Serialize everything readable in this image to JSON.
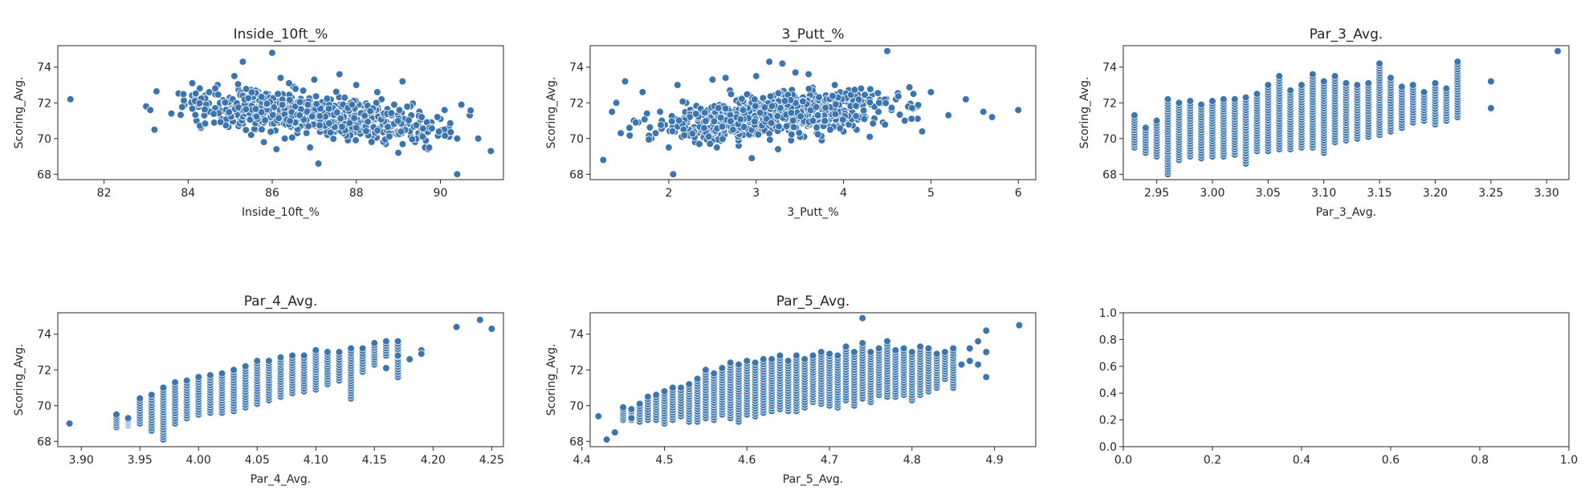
{
  "marker_color": "#3b75af",
  "marker_edge_color": "#ffffff",
  "chart_data": [
    {
      "type": "scatter",
      "title": "Inside_10ft_%",
      "xlabel": "Inside_10ft_%",
      "ylabel": "Scoring_Avg.",
      "xlim": [
        80.9,
        91.5
      ],
      "ylim": [
        67.7,
        75.2
      ],
      "xticks": [
        "82",
        "84",
        "86",
        "88",
        "90"
      ],
      "xtick_values": [
        82,
        84,
        86,
        88,
        90
      ],
      "yticks": [
        "68",
        "70",
        "72",
        "74"
      ],
      "ytick_values": [
        68,
        70,
        72,
        74
      ],
      "x": [
        81.2,
        83.0,
        83.2,
        83.1,
        83.6,
        83.9,
        84.1,
        84.2,
        84.4,
        84.7,
        84.9,
        85.1,
        85.2,
        85.3,
        85.5,
        85.7,
        85.9,
        86.0,
        86.2,
        86.3,
        86.5,
        86.7,
        86.9,
        87.0,
        87.2,
        87.4,
        87.6,
        87.8,
        88.0,
        88.1,
        88.3,
        88.5,
        88.7,
        88.9,
        89.1,
        89.3,
        89.5,
        89.7,
        90.0,
        90.2,
        90.4,
        90.7,
        90.9,
        91.2,
        84.5,
        85.8,
        86.4,
        87.1,
        87.3,
        87.9,
        88.6,
        89.0,
        85.0,
        86.1,
        86.8,
        87.5,
        88.2,
        88.8,
        89.4,
        90.1,
        84.3,
        85.4,
        86.6,
        87.7,
        88.4,
        89.8,
        90.5,
        85.6,
        86.0,
        87.0,
        90.4,
        84.1,
        85.2,
        86.2
      ],
      "y": [
        72.2,
        71.8,
        70.5,
        71.6,
        71.4,
        72.0,
        73.1,
        71.0,
        72.4,
        73.0,
        71.5,
        73.5,
        72.8,
        74.3,
        70.2,
        71.8,
        72.5,
        74.8,
        73.4,
        70.0,
        72.9,
        71.2,
        69.5,
        73.3,
        70.7,
        72.2,
        73.6,
        69.9,
        73.0,
        71.4,
        70.3,
        72.6,
        69.7,
        71.9,
        73.2,
        70.1,
        71.5,
        69.4,
        71.1,
        70.6,
        68.0,
        71.3,
        70.0,
        69.3,
        72.6,
        69.8,
        73.1,
        68.6,
        71.8,
        70.9,
        72.2,
        69.2,
        71.7,
        69.4,
        71.0,
        70.4,
        71.3,
        70.8,
        69.8,
        71.6,
        70.6,
        71.2,
        70.3,
        71.4,
        70.2,
        70.9,
        71.9,
        70.5,
        72.0,
        70.8,
        70.0,
        71.9,
        70.7,
        71.4
      ]
    },
    {
      "type": "scatter",
      "title": "3_Putt_%",
      "xlabel": "3_Putt_%",
      "ylabel": "Scoring_Avg.",
      "xlim": [
        1.1,
        6.2
      ],
      "ylim": [
        67.7,
        75.2
      ],
      "xticks": [
        "2",
        "3",
        "4",
        "5",
        "6"
      ],
      "xtick_values": [
        2,
        3,
        4,
        5,
        6
      ],
      "yticks": [
        "68",
        "70",
        "72",
        "74"
      ],
      "ytick_values": [
        68,
        70,
        72,
        74
      ],
      "x": [
        1.25,
        1.35,
        1.4,
        1.45,
        1.5,
        1.6,
        1.7,
        1.8,
        1.9,
        2.0,
        2.05,
        2.1,
        2.2,
        2.3,
        2.4,
        2.5,
        2.6,
        2.7,
        2.8,
        2.9,
        3.0,
        3.1,
        3.2,
        3.3,
        3.4,
        3.5,
        3.6,
        3.7,
        3.8,
        3.9,
        4.0,
        4.1,
        4.2,
        4.3,
        4.4,
        4.5,
        4.6,
        4.7,
        4.8,
        4.9,
        5.0,
        5.2,
        5.4,
        5.6,
        5.7,
        6.0,
        3.45,
        3.15,
        2.65,
        1.55,
        1.65,
        2.15,
        2.45,
        2.75,
        3.05,
        3.35,
        3.65,
        3.95,
        4.25,
        4.55,
        4.85,
        1.85,
        2.35,
        2.85,
        3.25,
        3.75,
        4.15,
        4.45,
        2.55,
        3.55,
        1.75,
        2.95
      ],
      "y": [
        68.8,
        71.5,
        72.0,
        70.3,
        73.2,
        71.0,
        72.6,
        70.0,
        71.5,
        69.5,
        68.0,
        73.0,
        72.0,
        69.8,
        71.3,
        73.3,
        70.2,
        72.7,
        69.6,
        71.8,
        73.5,
        70.5,
        72.4,
        74.2,
        69.9,
        71.6,
        73.6,
        70.8,
        72.2,
        73.0,
        70.4,
        71.9,
        72.8,
        70.1,
        71.5,
        74.9,
        72.2,
        71.0,
        72.5,
        70.4,
        72.6,
        71.3,
        72.2,
        71.5,
        71.2,
        71.6,
        73.7,
        74.3,
        73.4,
        70.6,
        70.9,
        71.0,
        70.4,
        71.1,
        70.7,
        71.0,
        71.4,
        71.3,
        71.2,
        71.6,
        71.8,
        70.3,
        69.7,
        70.2,
        69.4,
        69.9,
        70.5,
        70.9,
        69.5,
        70.1,
        71.4,
        68.9
      ]
    },
    {
      "type": "scatter",
      "title": "Par_3_Avg.",
      "xlabel": "Par_3_Avg.",
      "ylabel": "Scoring_Avg.",
      "xlim": [
        2.92,
        3.32
      ],
      "ylim": [
        67.7,
        75.2
      ],
      "xticks": [
        "2.95",
        "3.00",
        "3.05",
        "3.10",
        "3.15",
        "3.20",
        "3.25",
        "3.30"
      ],
      "xtick_values": [
        2.95,
        3.0,
        3.05,
        3.1,
        3.15,
        3.2,
        3.25,
        3.3
      ],
      "yticks": [
        "68",
        "70",
        "72",
        "74"
      ],
      "ytick_values": [
        68,
        70,
        72,
        74
      ],
      "strip_x": [
        2.93,
        2.94,
        2.95,
        2.96,
        2.97,
        2.98,
        2.99,
        3.0,
        3.01,
        3.02,
        3.03,
        3.04,
        3.05,
        3.06,
        3.07,
        3.08,
        3.09,
        3.1,
        3.11,
        3.12,
        3.13,
        3.14,
        3.15,
        3.16,
        3.17,
        3.18,
        3.19,
        3.2,
        3.21,
        3.22
      ],
      "strip_ymin": [
        69.5,
        69.2,
        69.0,
        68.0,
        68.8,
        69.0,
        68.9,
        69.0,
        69.0,
        69.1,
        68.6,
        69.3,
        69.3,
        69.4,
        69.4,
        69.5,
        69.5,
        69.2,
        69.8,
        69.9,
        70.0,
        70.1,
        70.2,
        70.4,
        70.6,
        70.9,
        71.0,
        70.8,
        71.0,
        71.2
      ],
      "strip_ymax": [
        71.3,
        70.6,
        71.0,
        72.2,
        72.0,
        72.1,
        71.9,
        72.1,
        72.2,
        72.2,
        72.3,
        72.5,
        73.0,
        73.5,
        72.7,
        73.0,
        73.6,
        73.2,
        73.5,
        73.1,
        73.0,
        73.1,
        74.2,
        73.4,
        72.9,
        73.0,
        72.6,
        73.1,
        72.8,
        74.3
      ],
      "extra_x": [
        3.25,
        3.25,
        3.31
      ],
      "extra_y": [
        73.2,
        71.7,
        74.9
      ]
    },
    {
      "type": "scatter",
      "title": "Par_4_Avg.",
      "xlabel": "Par_4_Avg.",
      "ylabel": "Scoring_Avg.",
      "xlim": [
        3.88,
        4.26
      ],
      "ylim": [
        67.7,
        75.2
      ],
      "xticks": [
        "3.90",
        "3.95",
        "4.00",
        "4.05",
        "4.10",
        "4.15",
        "4.20",
        "4.25"
      ],
      "xtick_values": [
        3.9,
        3.95,
        4.0,
        4.05,
        4.1,
        4.15,
        4.2,
        4.25
      ],
      "yticks": [
        "68",
        "70",
        "72",
        "74"
      ],
      "ytick_values": [
        68,
        70,
        72,
        74
      ],
      "strip_x": [
        3.93,
        3.94,
        3.95,
        3.96,
        3.97,
        3.98,
        3.99,
        4.0,
        4.01,
        4.02,
        4.03,
        4.04,
        4.05,
        4.06,
        4.07,
        4.08,
        4.09,
        4.1,
        4.11,
        4.12,
        4.13,
        4.14,
        4.15,
        4.16,
        4.17
      ],
      "strip_ymin": [
        68.8,
        68.9,
        69.0,
        68.6,
        68.1,
        69.0,
        69.3,
        69.5,
        69.6,
        69.6,
        69.7,
        69.9,
        70.1,
        70.3,
        70.5,
        70.7,
        70.8,
        70.9,
        71.2,
        71.4,
        70.4,
        71.9,
        72.3,
        72.8,
        71.6
      ],
      "strip_ymax": [
        69.5,
        69.3,
        70.4,
        70.6,
        71.0,
        71.3,
        71.4,
        71.6,
        71.7,
        71.8,
        72.0,
        72.2,
        72.5,
        72.5,
        72.7,
        72.8,
        72.8,
        73.1,
        73.0,
        73.0,
        73.2,
        73.2,
        73.5,
        73.6,
        73.6
      ],
      "extra_x": [
        3.89,
        4.18,
        4.19,
        4.19,
        4.22,
        4.24,
        4.25,
        4.16,
        4.17
      ],
      "extra_y": [
        69.0,
        72.6,
        73.1,
        72.9,
        74.4,
        74.8,
        74.3,
        72.1,
        72.8
      ]
    },
    {
      "type": "scatter",
      "title": "Par_5_Avg.",
      "xlabel": "Par_5_Avg.",
      "ylabel": "Scoring_Avg.",
      "xlim": [
        4.41,
        4.95
      ],
      "ylim": [
        67.7,
        75.2
      ],
      "xticks": [
        "4.4",
        "4.5",
        "4.6",
        "4.7",
        "4.8",
        "4.9"
      ],
      "xtick_values": [
        4.4,
        4.5,
        4.6,
        4.7,
        4.8,
        4.9
      ],
      "yticks": [
        "68",
        "70",
        "72",
        "74"
      ],
      "ytick_values": [
        68,
        70,
        72,
        74
      ],
      "strip_x": [
        4.45,
        4.46,
        4.47,
        4.48,
        4.49,
        4.5,
        4.51,
        4.52,
        4.53,
        4.54,
        4.55,
        4.56,
        4.57,
        4.58,
        4.59,
        4.6,
        4.61,
        4.62,
        4.63,
        4.64,
        4.65,
        4.66,
        4.67,
        4.68,
        4.69,
        4.7,
        4.71,
        4.72,
        4.73,
        4.74,
        4.75,
        4.76,
        4.77,
        4.78,
        4.79,
        4.8,
        4.81,
        4.82,
        4.83,
        4.84,
        4.85
      ],
      "strip_ymin": [
        69.2,
        69.2,
        69.1,
        69.2,
        69.2,
        69.0,
        69.2,
        69.4,
        69.1,
        69.1,
        69.3,
        69.2,
        69.5,
        69.3,
        69.1,
        69.5,
        69.4,
        69.6,
        69.7,
        69.8,
        69.7,
        69.7,
        69.9,
        70.2,
        70.1,
        70.0,
        69.9,
        70.3,
        70.0,
        70.4,
        70.2,
        70.6,
        70.5,
        70.5,
        70.6,
        70.3,
        70.6,
        70.8,
        71.0,
        71.5,
        71.0
      ],
      "strip_ymax": [
        69.9,
        69.8,
        70.1,
        70.5,
        70.6,
        70.8,
        71.0,
        71.0,
        71.2,
        71.5,
        72.0,
        71.8,
        72.1,
        72.4,
        72.3,
        72.5,
        72.4,
        72.6,
        72.6,
        72.8,
        72.5,
        72.8,
        72.6,
        72.8,
        73.0,
        72.9,
        72.8,
        73.3,
        73.0,
        73.5,
        73.0,
        73.2,
        73.6,
        73.1,
        73.2,
        73.0,
        73.3,
        73.2,
        72.9,
        73.0,
        73.2
      ],
      "extra_x": [
        4.42,
        4.43,
        4.44,
        4.46,
        4.86,
        4.87,
        4.88,
        4.88,
        4.89,
        4.89,
        4.89,
        4.93,
        4.74,
        4.87
      ],
      "extra_y": [
        69.4,
        68.1,
        68.5,
        69.3,
        72.3,
        73.2,
        73.6,
        72.3,
        74.2,
        73.0,
        71.6,
        74.5,
        74.9,
        72.5
      ]
    },
    {
      "type": "scatter",
      "title": "",
      "xlabel": "",
      "ylabel": "",
      "xlim": [
        0.0,
        1.0
      ],
      "ylim": [
        0.0,
        1.0
      ],
      "xticks": [
        "0.0",
        "0.2",
        "0.4",
        "0.6",
        "0.8",
        "1.0"
      ],
      "xtick_values": [
        0.0,
        0.2,
        0.4,
        0.6,
        0.8,
        1.0
      ],
      "yticks": [
        "0.0",
        "0.2",
        "0.4",
        "0.6",
        "0.8",
        "1.0"
      ],
      "ytick_values": [
        0.0,
        0.2,
        0.4,
        0.6,
        0.8,
        1.0
      ],
      "x": [],
      "y": []
    }
  ]
}
